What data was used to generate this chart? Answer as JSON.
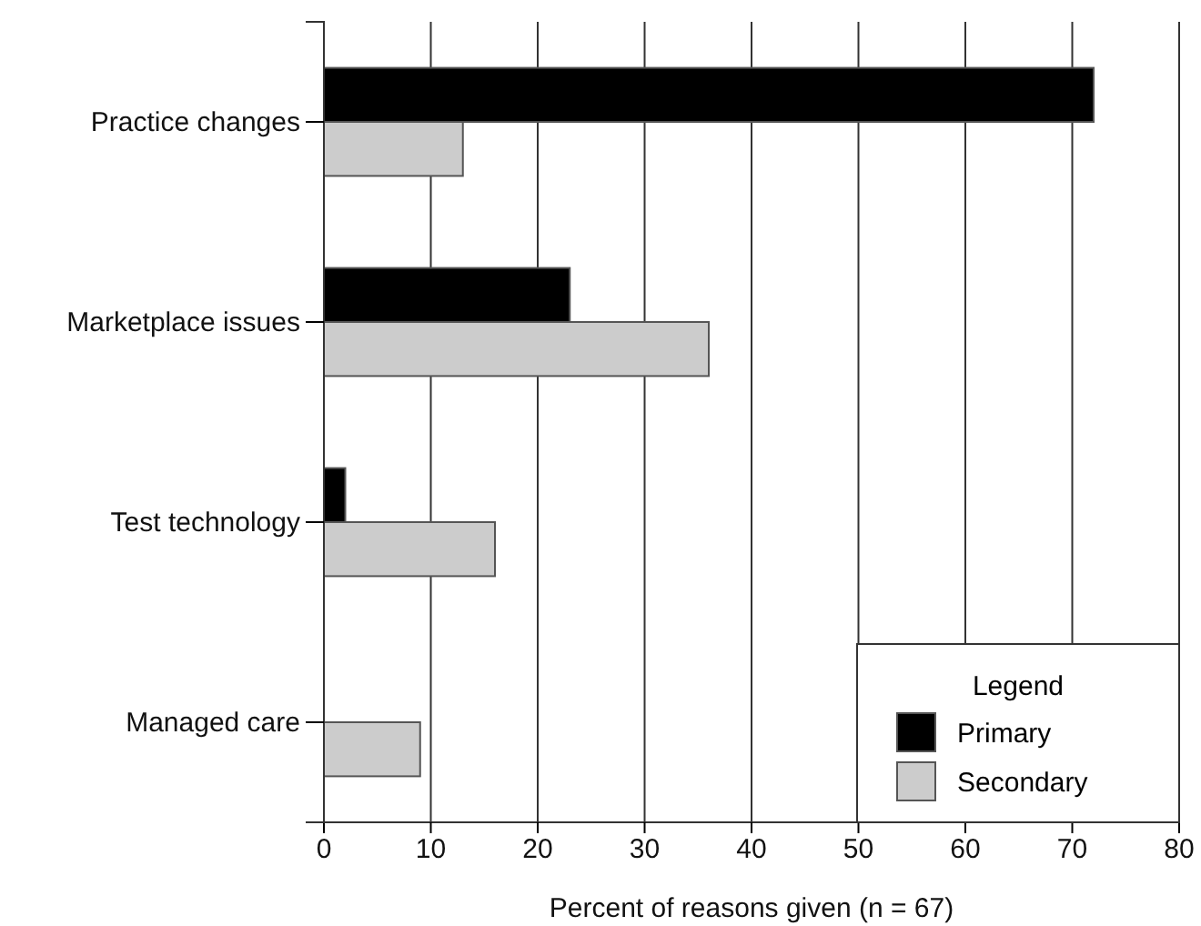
{
  "chart_data": {
    "type": "bar",
    "orientation": "horizontal",
    "xlabel": "Percent of reasons given (n = 67)",
    "categories": [
      "Practice changes",
      "Marketplace issues",
      "Test technology",
      "Managed care"
    ],
    "series": [
      {
        "name": "Primary",
        "color": "#000000",
        "values": [
          72,
          23,
          2,
          null
        ]
      },
      {
        "name": "Secondary",
        "color": "#cccccc",
        "values": [
          13,
          36,
          16,
          9
        ]
      }
    ],
    "xlim": [
      0,
      80
    ],
    "xticks": [
      0,
      10,
      20,
      30,
      40,
      50,
      60,
      70,
      80
    ],
    "grid": "x",
    "legend": "bottom right",
    "legend_title": "Legend"
  }
}
